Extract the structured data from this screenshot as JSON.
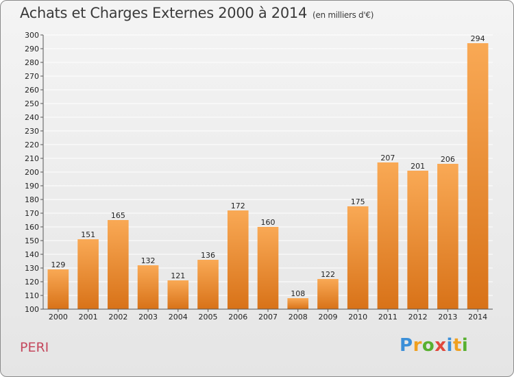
{
  "header": {
    "title": "Achats et Charges Externes 2000 à 2014",
    "subtitle": "(en milliers d'€)"
  },
  "footer": {
    "commune": "PERI",
    "logo": {
      "letters": [
        "P",
        "r",
        "o",
        "x",
        "i",
        "t",
        "i"
      ],
      "colors": [
        "#3b8fd8",
        "#f0a020",
        "#58b030",
        "#e0483c",
        "#3b8fd8",
        "#f0a020",
        "#58b030"
      ]
    }
  },
  "colors": {
    "bar_top": "#f9a955",
    "bar_bottom": "#d87218",
    "grid": "#ffffff",
    "title": "#3a3a3a",
    "commune": "#c4485d"
  },
  "chart_data": {
    "type": "bar",
    "title": "Achats et Charges Externes 2000 à 2014",
    "subtitle": "(en milliers d'€)",
    "xlabel": "",
    "ylabel": "",
    "categories": [
      "2000",
      "2001",
      "2002",
      "2003",
      "2004",
      "2005",
      "2006",
      "2007",
      "2008",
      "2009",
      "2010",
      "2011",
      "2012",
      "2013",
      "2014"
    ],
    "values": [
      129,
      151,
      165,
      132,
      121,
      136,
      172,
      160,
      108,
      122,
      175,
      207,
      201,
      206,
      294
    ],
    "ylim": [
      100,
      300
    ],
    "yticks": [
      100,
      110,
      120,
      130,
      140,
      150,
      160,
      170,
      180,
      190,
      200,
      210,
      220,
      230,
      240,
      250,
      260,
      270,
      280,
      290,
      300
    ],
    "grid": true,
    "legend": "none"
  }
}
